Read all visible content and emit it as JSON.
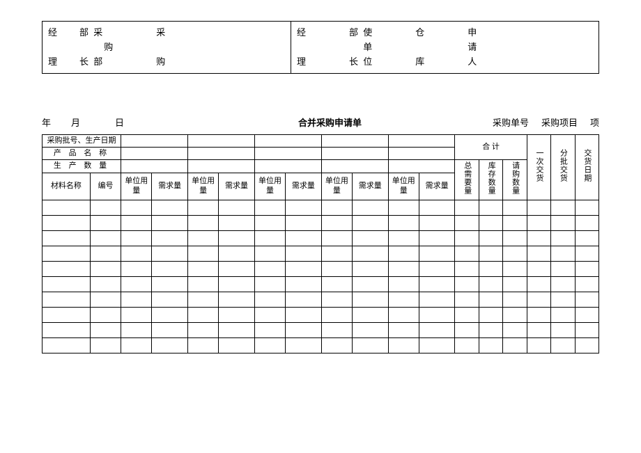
{
  "topBox": {
    "leftLine1": "经　　部 采　　　　　采",
    "leftLine2": "　　　　　 购",
    "leftLine3": "理　　长 部　　　　　购",
    "rightLine1": "经　　　　部 使　　　　仓　　　　申",
    "rightLine2": "　　　　　　 单　　　　　　　　　请",
    "rightLine3": "理　　　　长 位　　　　库　　　　人"
  },
  "titleRow": {
    "date": "年　月　　日",
    "title": "合并采购申请单",
    "orderNo": "采购单号",
    "project": "采购项目",
    "item": "项"
  },
  "headers": {
    "r1c1": "采购批号、生产日期",
    "r2c1": "产 品 名 称",
    "r3c1": "生 产 数 量",
    "material": "材料名称",
    "code": "编号",
    "unitUsage": "单位用量",
    "demandQty": "需求量",
    "total": "合 计",
    "totalDemand": "总需要量",
    "stockQty": "库存数量",
    "purchaseQty": "请购数量",
    "onceDelivery": "一次交货",
    "batchDelivery": "分批交货",
    "deliveryDate": "交货日期"
  },
  "dataRowCount": 10,
  "colCount": 18
}
